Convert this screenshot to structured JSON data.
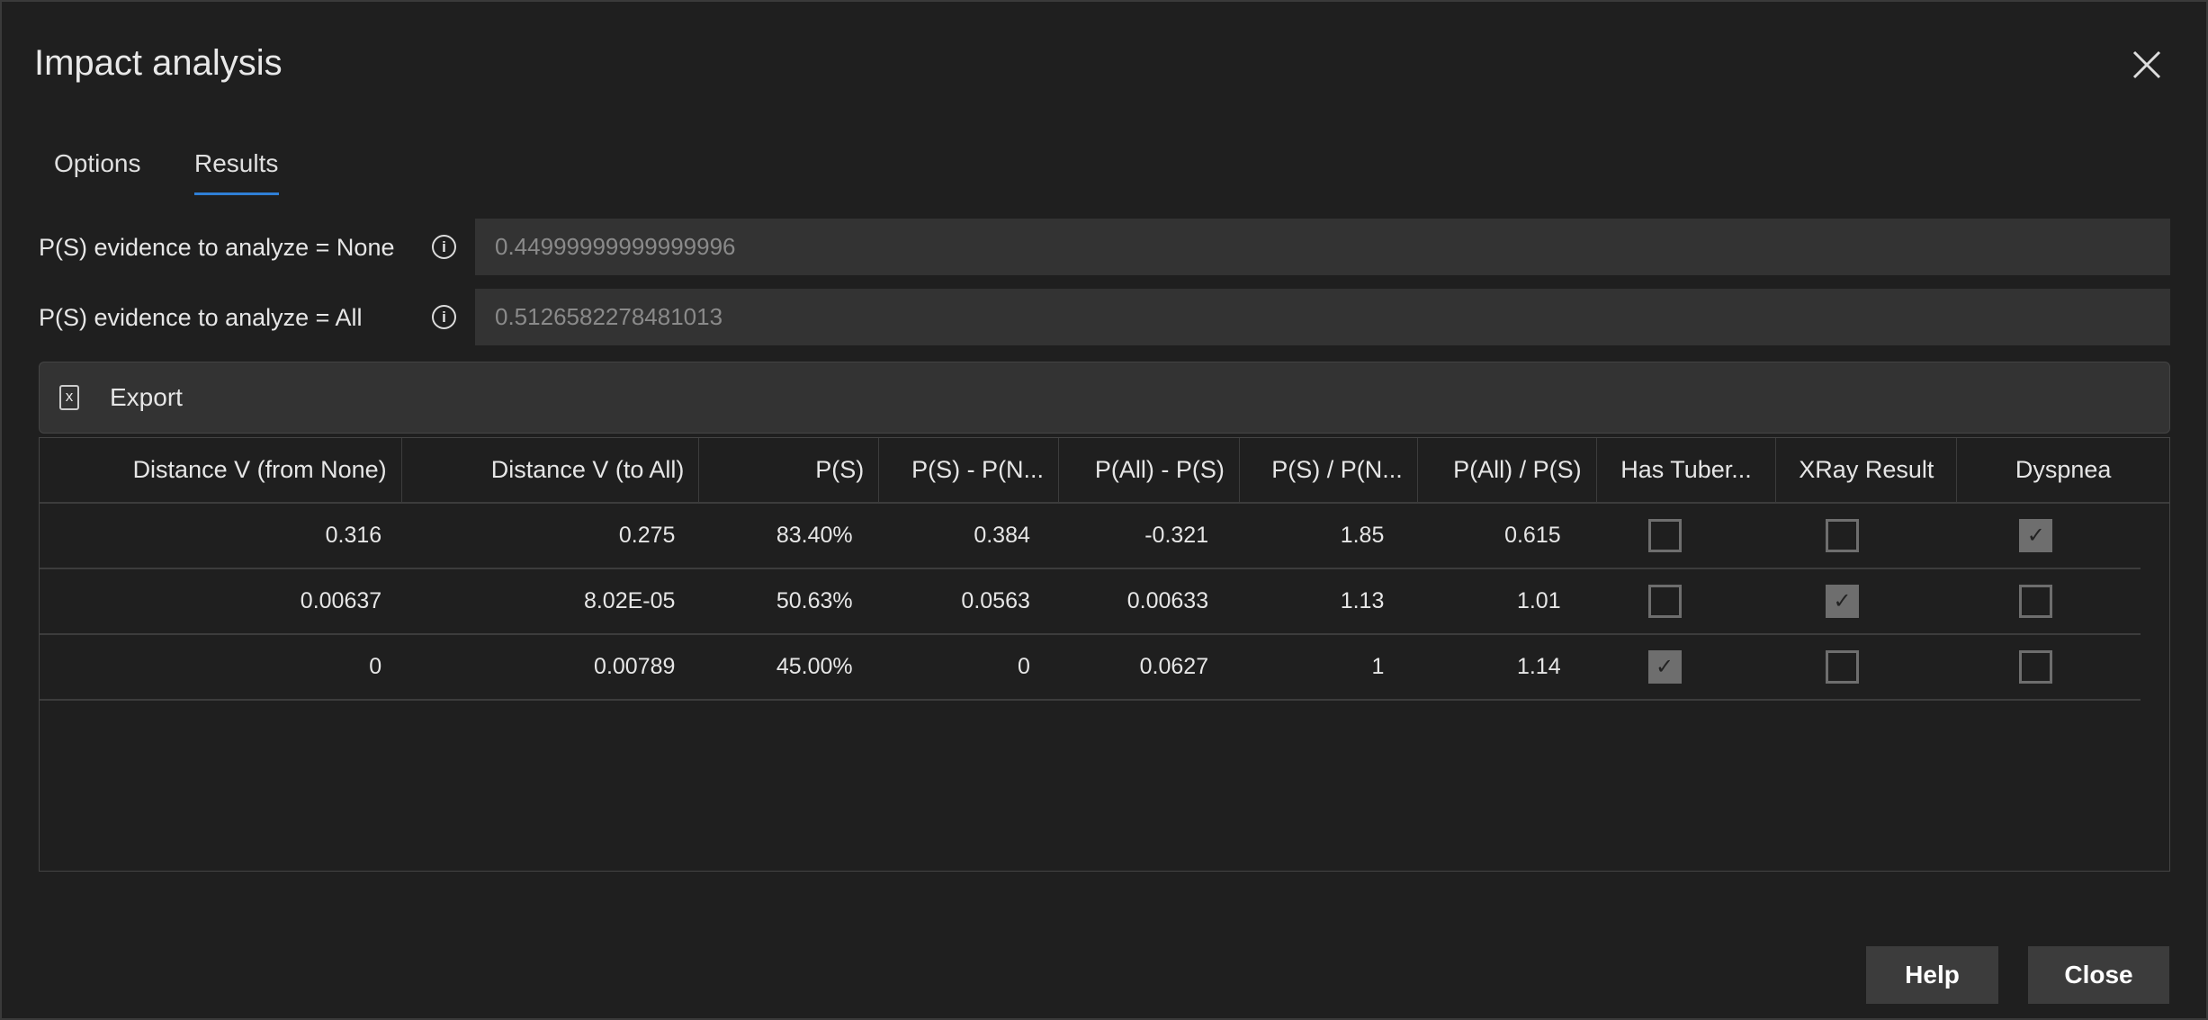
{
  "dialog": {
    "title": "Impact analysis",
    "close_icon": "close-icon"
  },
  "tabs": [
    {
      "label": "Options",
      "active": false
    },
    {
      "label": "Results",
      "active": true
    }
  ],
  "accent": "#2f7fd6",
  "fields": [
    {
      "label": "P(S) evidence to analyze = None",
      "value": "0.44999999999999996"
    },
    {
      "label": "P(S) evidence to analyze = All",
      "value": "0.5126582278481013"
    }
  ],
  "export_label": "Export",
  "table": {
    "columns": [
      "Distance V (from None)",
      "Distance V (to All)",
      "P(S)",
      "P(S) - P(N...",
      "P(All) - P(S)",
      "P(S) / P(N...",
      "P(All) / P(S)",
      "Has Tuber...",
      "XRay Result",
      "Dyspnea"
    ],
    "rows": [
      {
        "cells": [
          "0.316",
          "0.275",
          "83.40%",
          "0.384",
          "-0.321",
          "1.85",
          "0.615"
        ],
        "checks": [
          false,
          false,
          true
        ]
      },
      {
        "cells": [
          "0.00637",
          "8.02E-05",
          "50.63%",
          "0.0563",
          "0.00633",
          "1.13",
          "1.01"
        ],
        "checks": [
          false,
          true,
          false
        ]
      },
      {
        "cells": [
          "0",
          "0.00789",
          "45.00%",
          "0",
          "0.0627",
          "1",
          "1.14"
        ],
        "checks": [
          true,
          false,
          false
        ]
      }
    ]
  },
  "buttons": {
    "help": "Help",
    "close": "Close"
  }
}
